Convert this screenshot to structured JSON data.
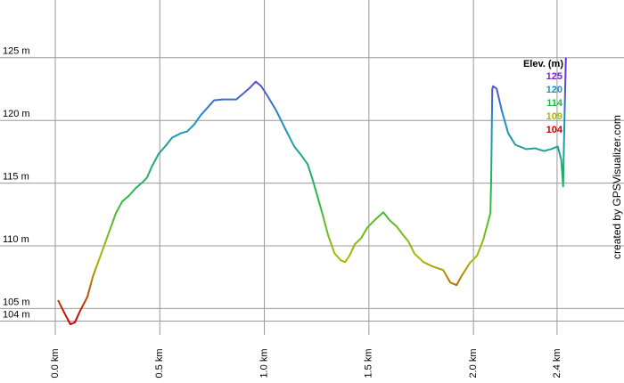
{
  "chart_data": {
    "type": "line",
    "x": [
      0.013,
      0.043,
      0.072,
      0.094,
      0.119,
      0.154,
      0.179,
      0.213,
      0.247,
      0.29,
      0.32,
      0.354,
      0.384,
      0.418,
      0.439,
      0.461,
      0.495,
      0.525,
      0.559,
      0.601,
      0.631,
      0.665,
      0.695,
      0.725,
      0.759,
      0.802,
      0.866,
      0.896,
      0.93,
      0.959,
      0.985,
      1.015,
      1.058,
      1.1,
      1.143,
      1.177,
      1.207,
      1.228,
      1.271,
      1.305,
      1.335,
      1.365,
      1.386,
      1.407,
      1.433,
      1.463,
      1.493,
      1.527,
      1.569,
      1.599,
      1.633,
      1.655,
      1.689,
      1.719,
      1.761,
      1.804,
      1.855,
      1.889,
      1.919,
      1.945,
      1.983,
      2.017,
      2.047,
      2.081,
      2.085,
      2.09,
      2.094,
      2.111,
      2.136,
      2.166,
      2.2,
      2.252,
      2.294,
      2.337,
      2.371,
      2.403,
      2.42,
      2.429,
      2.433,
      2.442
    ],
    "values": [
      105.67,
      104.67,
      103.75,
      103.9,
      104.82,
      105.95,
      107.51,
      109.07,
      110.62,
      112.61,
      113.53,
      114.02,
      114.59,
      115.08,
      115.44,
      116.29,
      117.35,
      117.92,
      118.63,
      118.98,
      119.12,
      119.69,
      120.4,
      120.96,
      121.6,
      121.67,
      121.67,
      122.1,
      122.59,
      123.09,
      122.73,
      121.95,
      120.75,
      119.33,
      117.92,
      117.21,
      116.5,
      115.44,
      112.96,
      110.84,
      109.42,
      108.85,
      108.71,
      109.21,
      110.13,
      110.62,
      111.47,
      112.04,
      112.68,
      112.04,
      111.54,
      111.05,
      110.34,
      109.35,
      108.71,
      108.36,
      108.07,
      107.08,
      106.87,
      107.65,
      108.64,
      109.21,
      110.48,
      112.61,
      115.44,
      122.52,
      122.73,
      122.52,
      120.75,
      118.98,
      118.06,
      117.71,
      117.78,
      117.56,
      117.71,
      117.92,
      116.86,
      114.73,
      118.27,
      125.0
    ],
    "xlim": [
      0,
      2.72
    ],
    "ylim": [
      102.9,
      129.6
    ],
    "xticks": [
      {
        "value": 0,
        "label": "0.0 km"
      },
      {
        "value": 0.5,
        "label": "0.5 km"
      },
      {
        "value": 1,
        "label": "1.0 km"
      },
      {
        "value": 1.5,
        "label": "1.5 km"
      },
      {
        "value": 2,
        "label": "2.0 km"
      },
      {
        "value": 2.4,
        "label": "2.4 km"
      }
    ],
    "yticks": [
      {
        "value": 104,
        "label": "104 m"
      },
      {
        "value": 105,
        "label": "105 m"
      },
      {
        "value": 110,
        "label": "110 m"
      },
      {
        "value": 115,
        "label": "115 m"
      },
      {
        "value": 120,
        "label": "120 m"
      },
      {
        "value": 125,
        "label": "125 m"
      }
    ],
    "grid": true,
    "legend_title": "Elev. (m)",
    "colorscale": [
      {
        "value": 125,
        "color": "#7a22cc"
      },
      {
        "value": 120,
        "color": "#1f8fcc"
      },
      {
        "value": 114,
        "color": "#22bb44"
      },
      {
        "value": 109,
        "color": "#aabb00"
      },
      {
        "value": 104,
        "color": "#cc0000"
      }
    ],
    "credit": "created by GPSVisualizer.com"
  }
}
